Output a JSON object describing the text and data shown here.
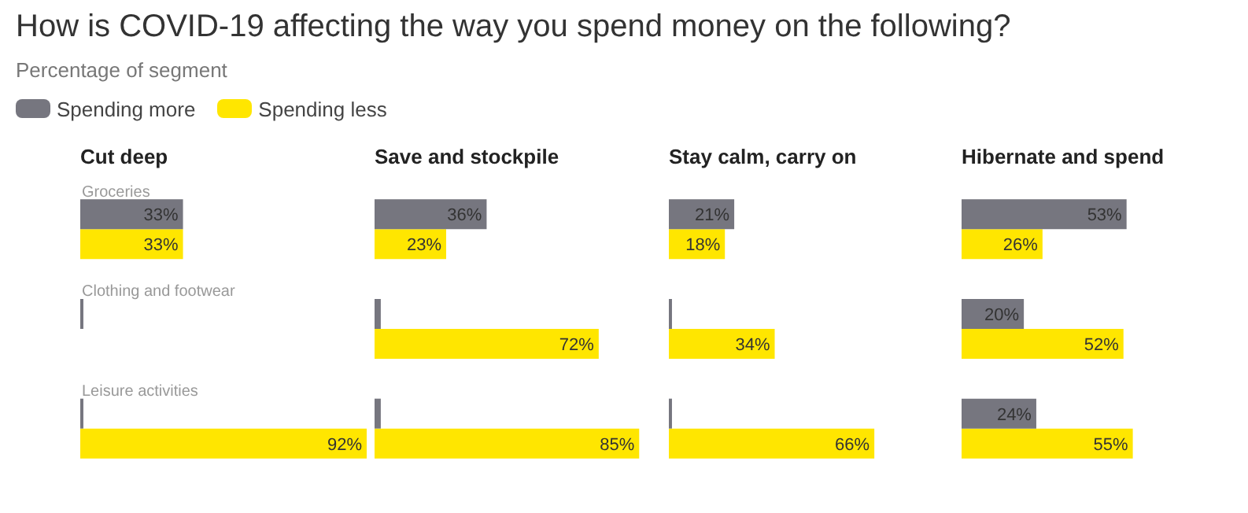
{
  "chart_data": [
    {
      "type": "other",
      "title": "How is COVID-19 affecting the way you spend money on the following?",
      "subtitle": "Percentage of segment"
    },
    {
      "type": "bar",
      "title": "Cut deep",
      "orientation": "horizontal",
      "categories": [
        "Groceries",
        "Clothing and footwear",
        "Leisure activities"
      ],
      "legend": "top left",
      "series": [
        {
          "name": "Spending more",
          "color": "#76767f",
          "values": [
            33,
            1,
            1
          ],
          "value_labels": [
            "33%",
            null,
            null
          ]
        },
        {
          "name": "Spending less",
          "color": "#ffe600",
          "values": [
            33,
            null,
            92
          ],
          "value_labels": [
            "33%",
            null,
            "92%"
          ]
        }
      ]
    },
    {
      "type": "bar",
      "title": "Save and stockpile",
      "orientation": "horizontal",
      "categories": [
        null,
        null,
        null
      ],
      "series": [
        {
          "color": "#76767f",
          "values": [
            36,
            2,
            2
          ],
          "value_labels": [
            "36%",
            null,
            null
          ]
        },
        {
          "color": "#ffe600",
          "values": [
            23,
            72,
            85
          ],
          "value_labels": [
            "23%",
            "72%",
            "85%"
          ]
        }
      ]
    },
    {
      "type": "bar",
      "title": "Stay calm, carry on",
      "orientation": "horizontal",
      "categories": [
        null,
        null,
        null
      ],
      "series": [
        {
          "color": "#76767f",
          "values": [
            21,
            1,
            1
          ],
          "value_labels": [
            "21%",
            null,
            null
          ]
        },
        {
          "color": "#ffe600",
          "values": [
            18,
            34,
            66
          ],
          "value_labels": [
            "18%",
            "34%",
            "66%"
          ]
        }
      ]
    },
    {
      "type": "bar",
      "title": "Hibernate and spend",
      "orientation": "horizontal",
      "categories": [
        null,
        null,
        null
      ],
      "series": [
        {
          "color": "#76767f",
          "values": [
            53,
            20,
            24
          ],
          "value_labels": [
            "53%",
            "20%",
            "24%"
          ]
        },
        {
          "color": "#ffe600",
          "values": [
            26,
            52,
            55
          ],
          "value_labels": [
            "26%",
            "52%",
            "55%"
          ]
        }
      ]
    }
  ]
}
